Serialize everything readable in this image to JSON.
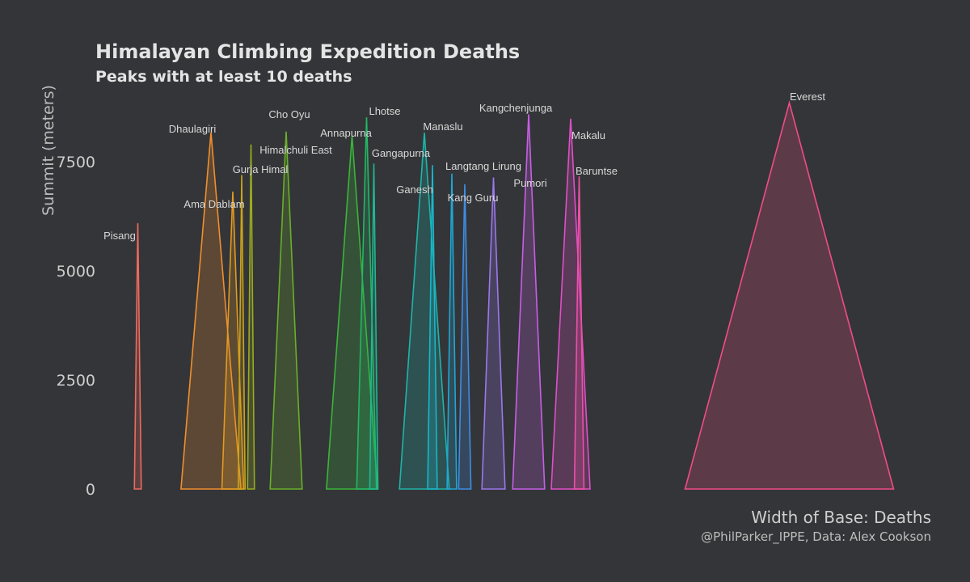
{
  "chart_data": {
    "type": "area",
    "title": "Himalayan Climbing Expedition Deaths",
    "subtitle": "Peaks with at least 10 deaths",
    "xlabel": "Width of Base: Deaths",
    "ylabel": "Summit (meters)",
    "caption": "@PhilParker_IPPE, Data: Alex Cookson",
    "y_ticks": [
      0,
      2500,
      5000,
      7500
    ],
    "ylim": [
      0,
      9000
    ],
    "grid": false,
    "peaks": [
      {
        "name": "Pisang",
        "summit": 6091,
        "deaths": 10,
        "color": "#ef6a5f"
      },
      {
        "name": "Dhaulagiri",
        "summit": 8167,
        "deaths": 88,
        "color": "#f08f2e"
      },
      {
        "name": "Ama Dablam",
        "summit": 6814,
        "deaths": 32,
        "color": "#e29a21"
      },
      {
        "name": "Gurja Himal",
        "summit": 7193,
        "deaths": 10,
        "color": "#c9a41c"
      },
      {
        "name": "Himalchuli East",
        "summit": 7893,
        "deaths": 10,
        "color": "#9aac1f"
      },
      {
        "name": "Cho Oyu",
        "summit": 8188,
        "deaths": 47,
        "color": "#69b02a"
      },
      {
        "name": "Annapurna",
        "summit": 8091,
        "deaths": 75,
        "color": "#3bb53b"
      },
      {
        "name": "Lhotse",
        "summit": 8516,
        "deaths": 29,
        "color": "#22b864"
      },
      {
        "name": "Gangapurna",
        "summit": 7455,
        "deaths": 12,
        "color": "#1fb891"
      },
      {
        "name": "Manaslu",
        "summit": 8163,
        "deaths": 73,
        "color": "#1db5ab"
      },
      {
        "name": "Ganesh",
        "summit": 7422,
        "deaths": 14,
        "color": "#18b7c9"
      },
      {
        "name": "Langtang Lirung",
        "summit": 7227,
        "deaths": 14,
        "color": "#1ea8d7"
      },
      {
        "name": "Kang Guru",
        "summit": 6981,
        "deaths": 18,
        "color": "#3e8ee4"
      },
      {
        "name": "Pumori",
        "summit": 7138,
        "deaths": 34,
        "color": "#9a78ec"
      },
      {
        "name": "Kangchenjunga",
        "summit": 8586,
        "deaths": 47,
        "color": "#c75fe6"
      },
      {
        "name": "Makalu",
        "summit": 8485,
        "deaths": 57,
        "color": "#e04fc9"
      },
      {
        "name": "Baruntse",
        "summit": 7162,
        "deaths": 14,
        "color": "#f04fa8"
      },
      {
        "name": "Everest",
        "summit": 8850,
        "deaths": 306,
        "color": "#f14c86"
      }
    ]
  }
}
